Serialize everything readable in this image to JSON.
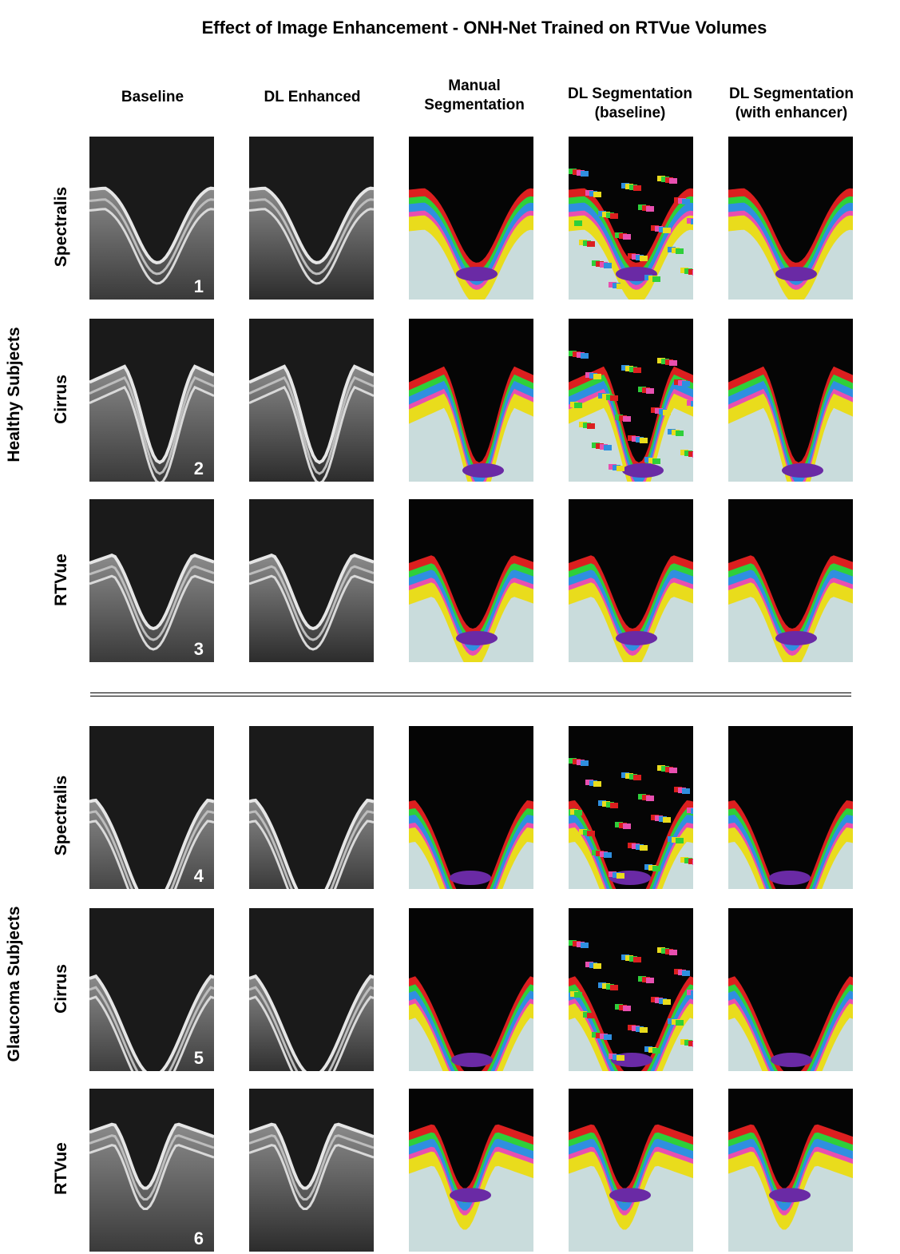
{
  "title": "Effect of Image Enhancement - ONH-Net Trained on RTVue Volumes",
  "columns": [
    {
      "l1": "",
      "l2": "Baseline"
    },
    {
      "l1": "",
      "l2": "DL Enhanced"
    },
    {
      "l1": "Manual",
      "l2": "Segmentation"
    },
    {
      "l1": "DL Segmentation",
      "l2": "(baseline)"
    },
    {
      "l1": "DL Segmentation",
      "l2": "(with enhancer)"
    }
  ],
  "groups": [
    {
      "label": "Healthy Subjects"
    },
    {
      "label": "Glaucoma Subjects"
    }
  ],
  "rows": [
    {
      "device": "Spectralis",
      "number": "1"
    },
    {
      "device": "Cirrus",
      "number": "2"
    },
    {
      "device": "RTVue",
      "number": "3"
    },
    {
      "device": "Spectralis",
      "number": "4"
    },
    {
      "device": "Cirrus",
      "number": "5"
    },
    {
      "device": "RTVue",
      "number": "6"
    }
  ],
  "colors": {
    "background_black": "#050505",
    "layer_red": "#dc1f1f",
    "layer_green": "#2fcf3a",
    "layer_blue": "#2f8fe0",
    "layer_pink": "#e84fb0",
    "layer_yellow": "#e9dc1c",
    "tissue_lightblue": "#c9dcdc",
    "lamina_purple": "#6a2aa5"
  }
}
